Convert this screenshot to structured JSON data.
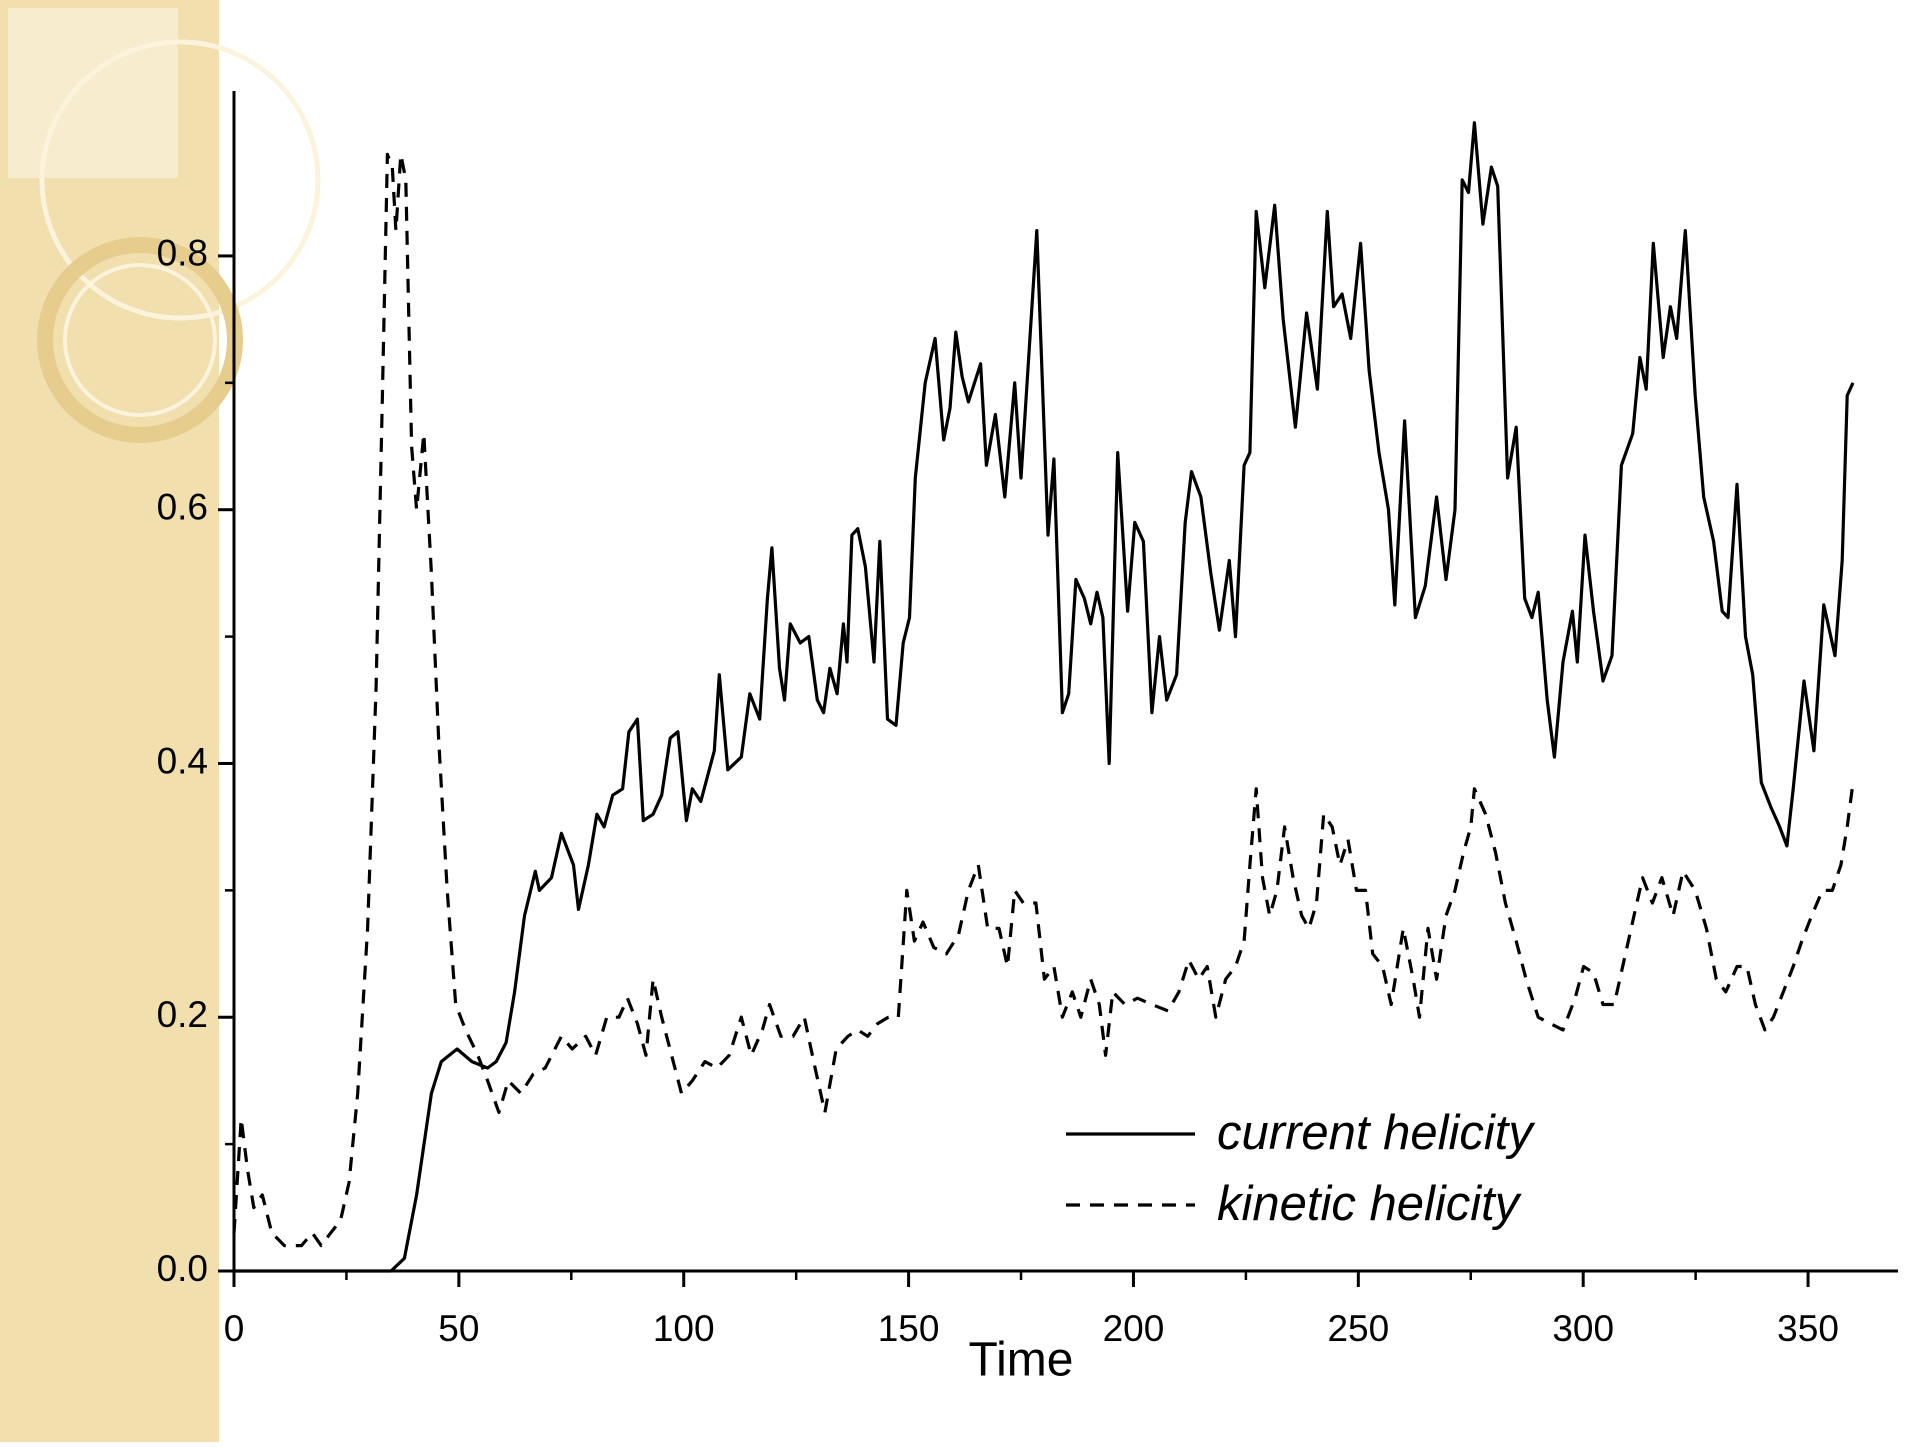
{
  "chart_data": {
    "type": "line",
    "xlabel": "Time",
    "xlim": [
      0,
      370
    ],
    "ylim": [
      0,
      0.93
    ],
    "xticks": [
      0,
      50,
      100,
      150,
      200,
      250,
      300,
      350
    ],
    "xminorticks": [
      25,
      75,
      125,
      175,
      225,
      275,
      325
    ],
    "yticks": [
      {
        "value": 0,
        "label": "0.0"
      },
      0.2,
      0.4,
      0.6,
      0.8
    ],
    "yminorticks": [
      0.1,
      0.3,
      0.5,
      0.7
    ],
    "legend": "lower right",
    "series": [
      {
        "name": "current helicity",
        "color": "#000000",
        "dash": "solid",
        "x": [
          0,
          34,
          34.9,
          37.9,
          40.6,
          43.9,
          46.1,
          49.6,
          52.9,
          56.4,
          58.3,
          60.5,
          62.4,
          64.6,
          67,
          67.9,
          70.6,
          72.8,
          75.5,
          76.6,
          78.8,
          80.7,
          82.3,
          84.2,
          86.4,
          87.8,
          89.7,
          91,
          93.2,
          95.1,
          97,
          98.7,
          100.6,
          101.9,
          103.8,
          106.8,
          107.9,
          109.8,
          112.8,
          114.7,
          116.9,
          118.6,
          119.6,
          121.3,
          122.4,
          123.7,
          125.9,
          127.8,
          129.7,
          131.1,
          132.5,
          134.1,
          135.5,
          136.3,
          137.4,
          138.7,
          140.4,
          142.3,
          143.6,
          145.3,
          147.2,
          148.8,
          150.2,
          151.5,
          153.7,
          155.9,
          157.8,
          159.2,
          160.5,
          161.9,
          163.3,
          166,
          167.3,
          169.3,
          171.4,
          173.6,
          175,
          178.5,
          181,
          182.3,
          184.2,
          185.6,
          187.2,
          189.1,
          190.5,
          191.9,
          193.2,
          194.6,
          196.5,
          198.7,
          200.3,
          202.2,
          204.1,
          205.8,
          207.4,
          209.6,
          211.5,
          212.9,
          215,
          217.2,
          219.1,
          221.3,
          222.7,
          224.6,
          225.9,
          227.3,
          229.2,
          231.4,
          233.3,
          236,
          238.5,
          240.9,
          243.1,
          244.5,
          246.4,
          248.3,
          250.5,
          252.4,
          254.6,
          256.7,
          258.1,
          260.3,
          262.7,
          264.9,
          267.4,
          269.5,
          271.5,
          273.1,
          274.5,
          275.8,
          277.7,
          279.6,
          281,
          283.2,
          285.1,
          287,
          288.6,
          290,
          292,
          293.6,
          295.5,
          297.6,
          298.7,
          300.4,
          302.3,
          304.4,
          306.4,
          308.5,
          311,
          312.6,
          314,
          315.6,
          317.8,
          319.4,
          320.8,
          322.7,
          324.9,
          326.8,
          329,
          330.9,
          332.2,
          334.2,
          336.1,
          337.7,
          339.6,
          341.8,
          343.7,
          345.3,
          346.7,
          349.1,
          351.3,
          353.5,
          356,
          357.6,
          358.7,
          360
        ],
        "values": [
          0,
          0,
          0,
          0.01,
          0.06,
          0.14,
          0.165,
          0.175,
          0.165,
          0.16,
          0.165,
          0.18,
          0.22,
          0.28,
          0.315,
          0.3,
          0.31,
          0.345,
          0.32,
          0.285,
          0.32,
          0.36,
          0.35,
          0.375,
          0.38,
          0.425,
          0.435,
          0.355,
          0.36,
          0.375,
          0.42,
          0.425,
          0.355,
          0.38,
          0.37,
          0.41,
          0.47,
          0.395,
          0.405,
          0.455,
          0.435,
          0.53,
          0.57,
          0.475,
          0.45,
          0.51,
          0.495,
          0.5,
          0.45,
          0.44,
          0.475,
          0.455,
          0.51,
          0.48,
          0.58,
          0.585,
          0.555,
          0.48,
          0.575,
          0.435,
          0.43,
          0.495,
          0.515,
          0.625,
          0.7,
          0.735,
          0.655,
          0.68,
          0.74,
          0.705,
          0.685,
          0.715,
          0.635,
          0.675,
          0.61,
          0.7,
          0.625,
          0.82,
          0.58,
          0.64,
          0.44,
          0.455,
          0.545,
          0.53,
          0.51,
          0.535,
          0.515,
          0.4,
          0.645,
          0.52,
          0.59,
          0.575,
          0.44,
          0.5,
          0.45,
          0.47,
          0.59,
          0.63,
          0.61,
          0.55,
          0.505,
          0.56,
          0.5,
          0.635,
          0.645,
          0.835,
          0.775,
          0.84,
          0.75,
          0.665,
          0.755,
          0.695,
          0.835,
          0.76,
          0.77,
          0.735,
          0.81,
          0.71,
          0.645,
          0.6,
          0.525,
          0.67,
          0.515,
          0.54,
          0.61,
          0.545,
          0.6,
          0.86,
          0.85,
          0.905,
          0.825,
          0.87,
          0.855,
          0.625,
          0.665,
          0.53,
          0.515,
          0.535,
          0.45,
          0.405,
          0.48,
          0.52,
          0.48,
          0.58,
          0.52,
          0.465,
          0.485,
          0.635,
          0.66,
          0.72,
          0.695,
          0.81,
          0.72,
          0.76,
          0.735,
          0.82,
          0.69,
          0.61,
          0.575,
          0.52,
          0.515,
          0.62,
          0.5,
          0.47,
          0.385,
          0.365,
          0.35,
          0.335,
          0.38,
          0.465,
          0.41,
          0.525,
          0.485,
          0.56,
          0.69,
          0.7
        ]
      },
      {
        "name": "kinetic helicity",
        "color": "#000000",
        "dash": "dashed",
        "x": [
          0,
          1.6,
          3,
          4.4,
          6.3,
          8.4,
          11.2,
          13.4,
          15,
          17.4,
          19.4,
          21.5,
          23.7,
          25.6,
          27.5,
          29.7,
          31.6,
          33,
          34.1,
          35.2,
          36,
          37.1,
          38.2,
          39.5,
          40.6,
          42.2,
          43.9,
          45.5,
          47.4,
          49.3,
          51.5,
          54.2,
          56.4,
          58.9,
          61,
          63.8,
          66.5,
          69.2,
          72.8,
          75.2,
          78.2,
          80.4,
          82.9,
          85.6,
          87.5,
          89.7,
          91.6,
          93.2,
          95.1,
          97.3,
          99.5,
          101.9,
          104.7,
          107.4,
          110.1,
          112.8,
          115,
          117.5,
          119.1,
          121.6,
          124.3,
          126.8,
          129.2,
          131.4,
          133.9,
          136.5,
          138.7,
          140.9,
          143.1,
          145.5,
          147.7,
          149.6,
          151.3,
          153.2,
          155.6,
          158.4,
          161.1,
          163.3,
          165.5,
          167.6,
          170.1,
          172,
          173.6,
          175.5,
          178.3,
          180.2,
          182.3,
          184.2,
          186.4,
          188.3,
          190.5,
          192.4,
          193.8,
          195.4,
          198.1,
          200.9,
          204.1,
          207.7,
          210.1,
          212.3,
          214.5,
          216.4,
          218.3,
          220.5,
          222.7,
          224.6,
          225.9,
          227.3,
          228.7,
          230.3,
          231.9,
          233.6,
          235.5,
          237.4,
          239,
          240.7,
          242.3,
          244.2,
          245.9,
          247.7,
          249.6,
          251.6,
          253.2,
          255.4,
          257.3,
          260,
          262.2,
          263.6,
          265.5,
          267.4,
          269.5,
          271.5,
          273.4,
          275,
          275.8,
          278.3,
          280.5,
          282.7,
          285.1,
          287.3,
          290,
          292.7,
          295.5,
          298.2,
          300.1,
          302.3,
          304.4,
          306.9,
          309.1,
          311.3,
          313.2,
          315.4,
          317.5,
          320,
          322.2,
          324.9,
          327.4,
          329.6,
          331.7,
          334.2,
          336.4,
          338.3,
          340.4,
          342.3,
          344.5,
          346.7,
          348.6,
          350.8,
          353.2,
          355.4,
          357.3,
          358.7,
          360
        ],
        "values": [
          0.03,
          0.12,
          0.08,
          0.05,
          0.06,
          0.03,
          0.02,
          0.02,
          0.02,
          0.03,
          0.02,
          0.03,
          0.04,
          0.07,
          0.14,
          0.27,
          0.46,
          0.69,
          0.88,
          0.87,
          0.82,
          0.88,
          0.86,
          0.65,
          0.6,
          0.66,
          0.55,
          0.42,
          0.3,
          0.21,
          0.19,
          0.17,
          0.15,
          0.125,
          0.15,
          0.14,
          0.155,
          0.16,
          0.185,
          0.175,
          0.185,
          0.17,
          0.2,
          0.2,
          0.215,
          0.195,
          0.17,
          0.23,
          0.2,
          0.17,
          0.14,
          0.15,
          0.165,
          0.16,
          0.17,
          0.2,
          0.17,
          0.19,
          0.21,
          0.185,
          0.185,
          0.2,
          0.16,
          0.125,
          0.175,
          0.185,
          0.19,
          0.185,
          0.195,
          0.2,
          0.2,
          0.3,
          0.26,
          0.275,
          0.255,
          0.25,
          0.265,
          0.3,
          0.32,
          0.27,
          0.27,
          0.24,
          0.3,
          0.29,
          0.29,
          0.23,
          0.24,
          0.2,
          0.22,
          0.2,
          0.23,
          0.21,
          0.17,
          0.22,
          0.21,
          0.215,
          0.21,
          0.205,
          0.22,
          0.245,
          0.23,
          0.24,
          0.2,
          0.23,
          0.24,
          0.26,
          0.32,
          0.38,
          0.31,
          0.28,
          0.3,
          0.35,
          0.31,
          0.28,
          0.27,
          0.29,
          0.36,
          0.35,
          0.32,
          0.34,
          0.3,
          0.3,
          0.25,
          0.24,
          0.21,
          0.27,
          0.23,
          0.2,
          0.27,
          0.23,
          0.28,
          0.3,
          0.33,
          0.35,
          0.38,
          0.36,
          0.33,
          0.29,
          0.26,
          0.23,
          0.2,
          0.195,
          0.19,
          0.215,
          0.24,
          0.235,
          0.21,
          0.21,
          0.245,
          0.28,
          0.31,
          0.29,
          0.31,
          0.28,
          0.315,
          0.3,
          0.27,
          0.23,
          0.22,
          0.24,
          0.24,
          0.21,
          0.19,
          0.2,
          0.22,
          0.24,
          0.26,
          0.28,
          0.3,
          0.3,
          0.32,
          0.35,
          0.385
        ]
      }
    ]
  }
}
